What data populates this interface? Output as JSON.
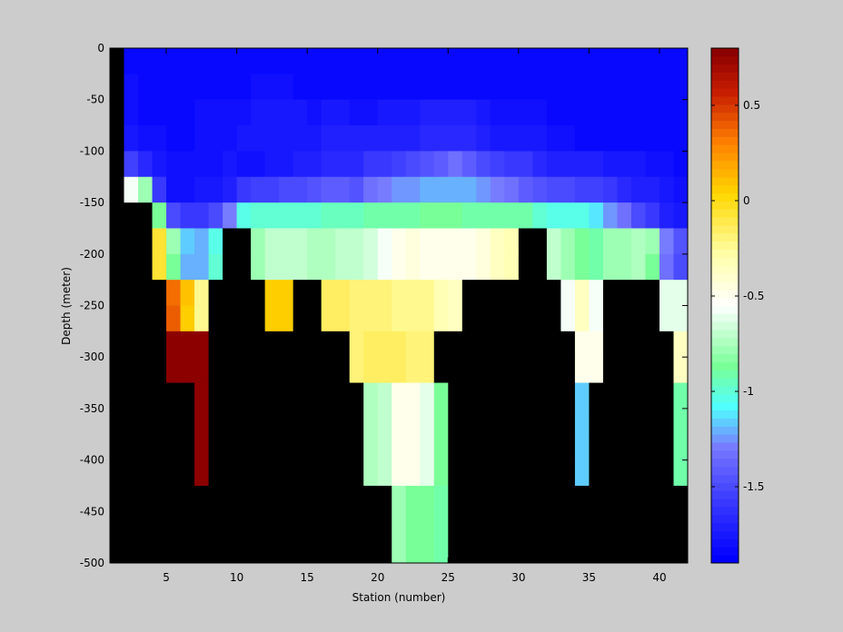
{
  "chart_data": {
    "type": "heatmap",
    "xlabel": "Station (number)",
    "ylabel": "Depth (meter)",
    "xlim": [
      1,
      42
    ],
    "ylim": [
      -500,
      0
    ],
    "xticks": [
      5,
      10,
      15,
      20,
      25,
      30,
      35,
      40
    ],
    "yticks": [
      0,
      -50,
      -100,
      -150,
      -200,
      -250,
      -300,
      -350,
      -400,
      -450,
      -500
    ],
    "colorbar": {
      "range": [
        -1.9,
        0.8
      ],
      "ticks": [
        0.5,
        0,
        -0.5,
        -1,
        -1.5
      ],
      "colormap": "jet-white-middle",
      "levels": 64
    },
    "missing_color": "#000000",
    "stations": [
      1,
      2,
      3,
      4,
      5,
      6,
      7,
      8,
      9,
      10,
      11,
      12,
      13,
      14,
      15,
      16,
      17,
      18,
      19,
      20,
      21,
      22,
      23,
      24,
      25,
      26,
      27,
      28,
      29,
      30,
      31,
      32,
      33,
      34,
      35,
      36,
      37,
      38,
      39,
      40,
      41
    ],
    "depths": [
      0,
      -25,
      -50,
      -75,
      -100,
      -125,
      -150,
      -175,
      -200,
      -225,
      -250,
      -275,
      -300,
      -325,
      -350,
      -375,
      -400,
      -425,
      -450,
      -475
    ],
    "values": [
      [
        null,
        -1.85,
        -1.85,
        -1.85,
        -1.85,
        -1.85,
        -1.85,
        -1.85,
        -1.85,
        -1.85,
        -1.85,
        -1.85,
        -1.85,
        -1.85,
        -1.85,
        -1.85,
        -1.85,
        -1.85,
        -1.85,
        -1.85,
        -1.85,
        -1.85,
        -1.85,
        -1.85,
        -1.85,
        -1.85,
        -1.85,
        -1.85,
        -1.85,
        -1.85,
        -1.85,
        -1.85,
        -1.85,
        -1.85,
        -1.85,
        -1.85,
        -1.85,
        -1.85,
        -1.85,
        -1.85,
        -1.85
      ],
      [
        null,
        -1.8,
        -1.85,
        -1.85,
        -1.85,
        -1.85,
        -1.85,
        -1.85,
        -1.85,
        -1.85,
        -1.8,
        -1.8,
        -1.8,
        -1.85,
        -1.85,
        -1.85,
        -1.85,
        -1.85,
        -1.85,
        -1.85,
        -1.85,
        -1.85,
        -1.85,
        -1.85,
        -1.85,
        -1.85,
        -1.85,
        -1.85,
        -1.85,
        -1.85,
        -1.85,
        -1.85,
        -1.85,
        -1.85,
        -1.85,
        -1.85,
        -1.85,
        -1.85,
        -1.85,
        -1.85,
        -1.85
      ],
      [
        null,
        -1.8,
        -1.85,
        -1.85,
        -1.85,
        -1.85,
        -1.8,
        -1.8,
        -1.8,
        -1.8,
        -1.75,
        -1.75,
        -1.75,
        -1.75,
        -1.8,
        -1.75,
        -1.75,
        -1.8,
        -1.8,
        -1.75,
        -1.75,
        -1.75,
        -1.7,
        -1.7,
        -1.7,
        -1.7,
        -1.75,
        -1.8,
        -1.8,
        -1.8,
        -1.8,
        -1.85,
        -1.85,
        -1.85,
        -1.85,
        -1.85,
        -1.85,
        -1.85,
        -1.85,
        -1.85,
        -1.85
      ],
      [
        null,
        -1.75,
        -1.8,
        -1.8,
        -1.85,
        -1.85,
        -1.8,
        -1.8,
        -1.8,
        -1.75,
        -1.75,
        -1.75,
        -1.75,
        -1.75,
        -1.75,
        -1.7,
        -1.7,
        -1.7,
        -1.7,
        -1.7,
        -1.7,
        -1.7,
        -1.65,
        -1.65,
        -1.65,
        -1.65,
        -1.7,
        -1.75,
        -1.75,
        -1.75,
        -1.75,
        -1.8,
        -1.8,
        -1.85,
        -1.85,
        -1.85,
        -1.85,
        -1.85,
        -1.85,
        -1.85,
        -1.85
      ],
      [
        null,
        -1.55,
        -1.65,
        -1.75,
        -1.8,
        -1.8,
        -1.8,
        -1.8,
        -1.75,
        -1.8,
        -1.8,
        -1.75,
        -1.75,
        -1.7,
        -1.7,
        -1.65,
        -1.65,
        -1.65,
        -1.6,
        -1.6,
        -1.55,
        -1.5,
        -1.45,
        -1.4,
        -1.35,
        -1.4,
        -1.5,
        -1.55,
        -1.6,
        -1.6,
        -1.65,
        -1.7,
        -1.7,
        -1.7,
        -1.7,
        -1.75,
        -1.75,
        -1.75,
        -1.8,
        -1.8,
        -1.85
      ],
      [
        null,
        -0.55,
        -0.8,
        -1.6,
        -1.8,
        -1.8,
        -1.75,
        -1.75,
        -1.7,
        -1.6,
        -1.55,
        -1.55,
        -1.5,
        -1.5,
        -1.45,
        -1.4,
        -1.4,
        -1.45,
        -1.35,
        -1.3,
        -1.25,
        -1.25,
        -1.2,
        -1.2,
        -1.2,
        -1.2,
        -1.25,
        -1.3,
        -1.35,
        -1.4,
        -1.45,
        -1.5,
        -1.5,
        -1.55,
        -1.55,
        -1.6,
        -1.65,
        -1.7,
        -1.7,
        -1.75,
        -1.8
      ],
      [
        null,
        null,
        null,
        -0.85,
        -1.5,
        -1.6,
        -1.6,
        -1.5,
        -1.3,
        -1.05,
        -1.0,
        -1.0,
        -1.0,
        -1.0,
        -1.0,
        -0.95,
        -0.95,
        -0.95,
        -0.9,
        -0.9,
        -0.9,
        -0.9,
        -0.85,
        -0.85,
        -0.85,
        -0.9,
        -0.9,
        -0.9,
        -0.9,
        -0.9,
        -1.0,
        -1.05,
        -1.05,
        -1.05,
        -1.1,
        -1.25,
        -1.35,
        -1.5,
        -1.6,
        -1.7,
        -1.75
      ],
      [
        null,
        null,
        null,
        -0.05,
        -0.8,
        -1.15,
        -1.2,
        -1.05,
        null,
        null,
        -0.8,
        -0.7,
        -0.7,
        -0.7,
        -0.75,
        -0.75,
        -0.7,
        -0.7,
        -0.65,
        -0.55,
        -0.5,
        -0.45,
        -0.5,
        -0.5,
        -0.5,
        -0.5,
        -0.45,
        -0.35,
        -0.3,
        null,
        null,
        -0.7,
        -0.8,
        -0.85,
        -0.9,
        -0.8,
        -0.8,
        -0.75,
        -0.8,
        -1.3,
        -1.45
      ],
      [
        null,
        null,
        null,
        -0.05,
        -0.85,
        -1.2,
        -1.2,
        -1.0,
        null,
        null,
        -0.8,
        -0.7,
        -0.7,
        -0.7,
        -0.75,
        -0.75,
        -0.7,
        -0.7,
        -0.65,
        -0.55,
        -0.5,
        -0.45,
        -0.5,
        -0.5,
        -0.5,
        -0.5,
        -0.45,
        -0.35,
        -0.3,
        null,
        null,
        -0.7,
        -0.8,
        -0.85,
        -0.9,
        -0.8,
        -0.8,
        -0.75,
        -0.85,
        -1.35,
        -1.5
      ],
      [
        null,
        null,
        null,
        null,
        0.35,
        0.1,
        -0.25,
        null,
        null,
        null,
        null,
        0.05,
        0.05,
        null,
        null,
        -0.15,
        -0.15,
        -0.2,
        -0.2,
        -0.2,
        -0.25,
        -0.25,
        -0.25,
        -0.3,
        -0.35,
        null,
        null,
        null,
        null,
        null,
        null,
        null,
        -0.55,
        -0.35,
        -0.55,
        null,
        null,
        null,
        null,
        -0.6,
        -0.6
      ],
      [
        null,
        null,
        null,
        null,
        0.4,
        0.05,
        -0.25,
        null,
        null,
        null,
        null,
        0.05,
        0.05,
        null,
        null,
        -0.15,
        -0.15,
        -0.2,
        -0.2,
        -0.2,
        -0.25,
        -0.25,
        -0.25,
        -0.3,
        -0.35,
        null,
        null,
        null,
        null,
        null,
        null,
        null,
        -0.55,
        -0.35,
        -0.55,
        null,
        null,
        null,
        null,
        -0.6,
        -0.6
      ],
      [
        null,
        null,
        null,
        null,
        0.8,
        0.8,
        0.8,
        null,
        null,
        null,
        null,
        null,
        null,
        null,
        null,
        null,
        null,
        -0.2,
        -0.15,
        -0.15,
        -0.15,
        -0.2,
        -0.2,
        null,
        null,
        null,
        null,
        null,
        null,
        null,
        null,
        null,
        null,
        -0.5,
        -0.5,
        null,
        null,
        null,
        null,
        null,
        -0.35
      ],
      [
        null,
        null,
        null,
        null,
        0.8,
        0.8,
        0.8,
        null,
        null,
        null,
        null,
        null,
        null,
        null,
        null,
        null,
        null,
        -0.2,
        -0.15,
        -0.15,
        -0.15,
        -0.2,
        -0.2,
        null,
        null,
        null,
        null,
        null,
        null,
        null,
        null,
        null,
        null,
        -0.5,
        -0.5,
        null,
        null,
        null,
        null,
        null,
        -0.35
      ],
      [
        null,
        null,
        null,
        null,
        null,
        null,
        0.8,
        null,
        null,
        null,
        null,
        null,
        null,
        null,
        null,
        null,
        null,
        null,
        -0.75,
        -0.7,
        -0.5,
        -0.5,
        -0.6,
        -0.85,
        null,
        null,
        null,
        null,
        null,
        null,
        null,
        null,
        null,
        -1.15,
        null,
        null,
        null,
        null,
        null,
        null,
        -0.9
      ],
      [
        null,
        null,
        null,
        null,
        null,
        null,
        0.8,
        null,
        null,
        null,
        null,
        null,
        null,
        null,
        null,
        null,
        null,
        null,
        -0.75,
        -0.7,
        -0.5,
        -0.5,
        -0.6,
        -0.85,
        null,
        null,
        null,
        null,
        null,
        null,
        null,
        null,
        null,
        -1.15,
        null,
        null,
        null,
        null,
        null,
        null,
        -0.9
      ],
      [
        null,
        null,
        null,
        null,
        null,
        null,
        0.8,
        null,
        null,
        null,
        null,
        null,
        null,
        null,
        null,
        null,
        null,
        null,
        -0.75,
        -0.7,
        -0.5,
        -0.5,
        -0.6,
        -0.85,
        null,
        null,
        null,
        null,
        null,
        null,
        null,
        null,
        null,
        -1.15,
        null,
        null,
        null,
        null,
        null,
        null,
        -0.9
      ],
      [
        null,
        null,
        null,
        null,
        null,
        null,
        0.8,
        null,
        null,
        null,
        null,
        null,
        null,
        null,
        null,
        null,
        null,
        null,
        -0.75,
        -0.7,
        -0.5,
        -0.5,
        -0.6,
        -0.85,
        null,
        null,
        null,
        null,
        null,
        null,
        null,
        null,
        null,
        -1.15,
        null,
        null,
        null,
        null,
        null,
        null,
        -0.9
      ],
      [
        null,
        null,
        null,
        null,
        null,
        null,
        null,
        null,
        null,
        null,
        null,
        null,
        null,
        null,
        null,
        null,
        null,
        null,
        null,
        null,
        -0.8,
        -0.85,
        -0.85,
        -0.9,
        null,
        null,
        null,
        null,
        null,
        null,
        null,
        null,
        null,
        null,
        null,
        null,
        null,
        null,
        null,
        null,
        null
      ],
      [
        null,
        null,
        null,
        null,
        null,
        null,
        null,
        null,
        null,
        null,
        null,
        null,
        null,
        null,
        null,
        null,
        null,
        null,
        null,
        null,
        -0.8,
        -0.85,
        -0.85,
        -0.9,
        null,
        null,
        null,
        null,
        null,
        null,
        null,
        null,
        null,
        null,
        null,
        null,
        null,
        null,
        null,
        null,
        null
      ],
      [
        null,
        null,
        null,
        null,
        null,
        null,
        null,
        null,
        null,
        null,
        null,
        null,
        null,
        null,
        null,
        null,
        null,
        null,
        null,
        null,
        -0.8,
        -0.85,
        -0.85,
        -0.9,
        null,
        null,
        null,
        null,
        null,
        null,
        null,
        null,
        null,
        null,
        null,
        null,
        null,
        null,
        null,
        null,
        null
      ]
    ]
  }
}
